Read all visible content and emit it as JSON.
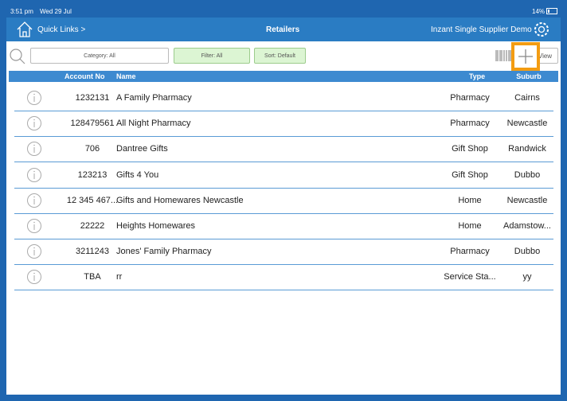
{
  "status": {
    "time": "3:51 pm",
    "date": "Wed 29 Jul",
    "battery": "14%"
  },
  "header": {
    "quick_links": "Quick Links >",
    "title": "Retailers",
    "account": "Inzant Single Supplier Demo"
  },
  "toolbar": {
    "category": "Category: All",
    "filter": "Filter: All",
    "sort": "Sort: Default",
    "view": "View"
  },
  "table": {
    "columns": [
      "Account No",
      "Name",
      "Type",
      "Suburb"
    ],
    "rows": [
      [
        "1232131",
        "A Family Pharmacy",
        "Pharmacy",
        "Cairns"
      ],
      [
        "128479561",
        "All Night Pharmacy",
        "Pharmacy",
        "Newcastle"
      ],
      [
        "706",
        "Dantree Gifts",
        "Gift Shop",
        "Randwick"
      ],
      [
        "123213",
        "Gifts 4 You",
        "Gift Shop",
        "Dubbo"
      ],
      [
        "12 345 467...",
        "Gifts and Homewares Newcastle",
        "Home",
        "Newcastle"
      ],
      [
        "22222",
        "Heights Homewares",
        "Home",
        "Adamstow..."
      ],
      [
        "3211243",
        "Jones' Family Pharmacy",
        "Pharmacy",
        "Dubbo"
      ],
      [
        "TBA",
        "rr",
        "Service Sta...",
        "yy"
      ]
    ]
  }
}
